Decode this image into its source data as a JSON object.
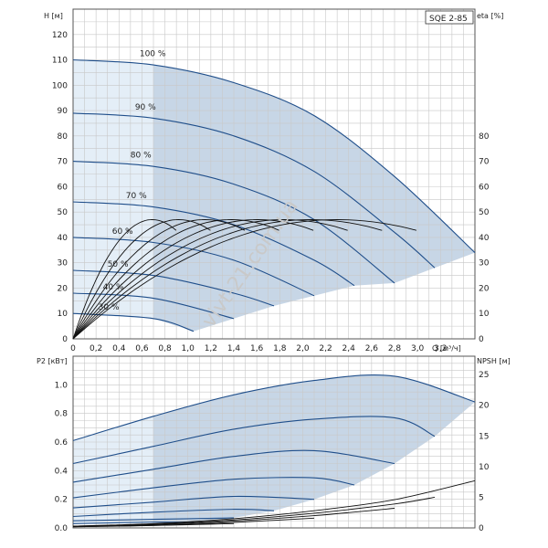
{
  "chart_data": [
    {
      "type": "line",
      "title": "SQE 2-85",
      "xlabel": "Q [м³/ч]",
      "ylabel": "H [м]",
      "ylabel_right": "eta [%]",
      "xlim": [
        0,
        3.5
      ],
      "ylim": [
        0,
        130
      ],
      "ylim_right": [
        0,
        130
      ],
      "xticks": [
        "0",
        "0,2",
        "0,4",
        "0,6",
        "0,8",
        "1,0",
        "1,2",
        "1,4",
        "1,6",
        "1,8",
        "2,0",
        "2,2",
        "2,4",
        "2,6",
        "2,8",
        "3,0",
        "3,2"
      ],
      "yticks": [
        "0",
        "10",
        "20",
        "30",
        "40",
        "50",
        "60",
        "70",
        "80",
        "90",
        "100",
        "110",
        "120"
      ],
      "yticks_right": [
        "0",
        "10",
        "20",
        "30",
        "40",
        "50",
        "60",
        "70",
        "80"
      ],
      "speed_labels": [
        "100 %",
        "90 %",
        "80 %",
        "70 %",
        "60 %",
        "50 %",
        "40 %",
        "30 %"
      ],
      "series": [
        {
          "speed": 100,
          "x": [
            0,
            0.7,
            1.4,
            2.1,
            2.8,
            3.5
          ],
          "y": [
            110,
            108,
            101,
            88,
            64,
            34
          ]
        },
        {
          "speed": 90,
          "x": [
            0,
            0.7,
            1.4,
            2.1,
            2.8,
            3.15
          ],
          "y": [
            89,
            87,
            80,
            66,
            42,
            28
          ]
        },
        {
          "speed": 80,
          "x": [
            0,
            0.7,
            1.4,
            2.1,
            2.8
          ],
          "y": [
            70,
            68,
            61,
            47,
            22
          ]
        },
        {
          "speed": 70,
          "x": [
            0,
            0.7,
            1.4,
            2.1,
            2.45
          ],
          "y": [
            54,
            52,
            45,
            31,
            21
          ]
        },
        {
          "speed": 60,
          "x": [
            0,
            0.7,
            1.4,
            2.1
          ],
          "y": [
            40,
            38,
            31,
            17
          ]
        },
        {
          "speed": 50,
          "x": [
            0,
            0.7,
            1.4,
            1.75
          ],
          "y": [
            27,
            25,
            18,
            13
          ]
        },
        {
          "speed": 40,
          "x": [
            0,
            0.7,
            1.4
          ],
          "y": [
            18,
            16,
            8
          ]
        },
        {
          "speed": 30,
          "x": [
            0,
            0.7,
            1.05
          ],
          "y": [
            10,
            8,
            3
          ]
        }
      ],
      "eta_series": [
        {
          "speed": 100,
          "peak_x": 2.3,
          "peak_eta": 47
        },
        {
          "speed": 90,
          "peak_x": 2.07,
          "peak_eta": 47
        },
        {
          "speed": 80,
          "peak_x": 1.84,
          "peak_eta": 47
        },
        {
          "speed": 70,
          "peak_x": 1.61,
          "peak_eta": 47
        },
        {
          "speed": 60,
          "peak_x": 1.38,
          "peak_eta": 47
        },
        {
          "speed": 50,
          "peak_x": 1.15,
          "peak_eta": 47
        },
        {
          "speed": 40,
          "peak_x": 0.92,
          "peak_eta": 47
        },
        {
          "speed": 30,
          "peak_x": 0.69,
          "peak_eta": 47
        }
      ]
    },
    {
      "type": "line",
      "xlabel": "Q [м³/ч]",
      "ylabel": "P2 [кВт]",
      "ylabel_right": "NPSH [м]",
      "xlim": [
        0,
        3.5
      ],
      "ylim": [
        0,
        1.2
      ],
      "ylim_right": [
        0,
        28
      ],
      "yticks": [
        "0.0",
        "0.2",
        "0.4",
        "0.6",
        "0.8",
        "1.0"
      ],
      "yticks_right": [
        "0",
        "5",
        "10",
        "15",
        "20",
        "25"
      ],
      "series": [
        {
          "speed": 100,
          "x": [
            0,
            0.7,
            1.4,
            2.1,
            2.8,
            3.5
          ],
          "y": [
            0.61,
            0.78,
            0.93,
            1.03,
            1.06,
            0.88
          ]
        },
        {
          "speed": 90,
          "x": [
            0,
            0.7,
            1.4,
            2.1,
            2.8,
            3.15
          ],
          "y": [
            0.45,
            0.57,
            0.69,
            0.76,
            0.77,
            0.64
          ]
        },
        {
          "speed": 80,
          "x": [
            0,
            0.7,
            1.4,
            2.1,
            2.8
          ],
          "y": [
            0.32,
            0.41,
            0.5,
            0.54,
            0.45
          ]
        },
        {
          "speed": 70,
          "x": [
            0,
            0.7,
            1.4,
            2.1,
            2.45
          ],
          "y": [
            0.21,
            0.28,
            0.34,
            0.35,
            0.3
          ]
        },
        {
          "speed": 60,
          "x": [
            0,
            0.7,
            1.4,
            2.1
          ],
          "y": [
            0.14,
            0.18,
            0.22,
            0.2
          ]
        },
        {
          "speed": 50,
          "x": [
            0,
            0.7,
            1.4,
            1.75
          ],
          "y": [
            0.08,
            0.11,
            0.13,
            0.12
          ]
        },
        {
          "speed": 40,
          "x": [
            0,
            0.7,
            1.4
          ],
          "y": [
            0.05,
            0.06,
            0.07
          ]
        },
        {
          "speed": 30,
          "x": [
            0,
            0.7,
            1.05
          ],
          "y": [
            0.03,
            0.04,
            0.04
          ]
        }
      ],
      "npsh_series": [
        {
          "x": [
            0,
            0.7,
            1.4,
            2.1,
            2.8,
            3.5
          ],
          "y": [
            0.3,
            0.7,
            1.5,
            2.8,
            4.6,
            7.7
          ]
        },
        {
          "x": [
            0,
            0.7,
            1.4,
            2.1,
            2.8,
            3.15
          ],
          "y": [
            0.3,
            0.6,
            1.3,
            2.4,
            3.9,
            5.0
          ]
        },
        {
          "x": [
            0,
            0.7,
            1.4,
            2.1,
            2.8
          ],
          "y": [
            0.2,
            0.5,
            1.1,
            2.0,
            3.2
          ]
        },
        {
          "x": [
            0,
            0.7,
            1.4,
            2.1
          ],
          "y": [
            0.2,
            0.4,
            0.9,
            1.6
          ]
        },
        {
          "x": [
            0,
            0.7,
            1.4
          ],
          "y": [
            0.2,
            0.4,
            0.7
          ]
        }
      ]
    }
  ],
  "watermark": "vivt-21.com.ua",
  "colors": {
    "curve": "#1f4e8a",
    "fill": "#c7d6e6",
    "fill_light": "#e4eef7",
    "grid": "#c8c8c8",
    "axis": "#333333",
    "eta": "#111111"
  }
}
